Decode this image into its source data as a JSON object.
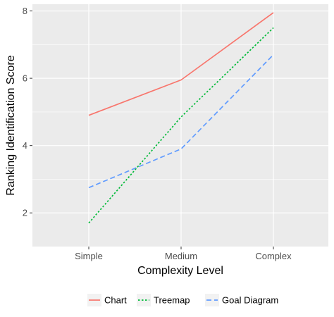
{
  "chart_data": {
    "type": "line",
    "title": "",
    "xlabel": "Complexity Level",
    "ylabel": "Ranking Identification Score",
    "categories": [
      "Simple",
      "Medium",
      "Complex"
    ],
    "ylim": [
      1.0,
      8.2
    ],
    "yticks": [
      2,
      4,
      6,
      8
    ],
    "grid": true,
    "legend_position": "bottom",
    "series": [
      {
        "name": "Chart",
        "values": [
          4.9,
          5.95,
          7.95
        ],
        "color": "#F8766D",
        "dash": "solid"
      },
      {
        "name": "Treemap",
        "values": [
          1.7,
          4.85,
          7.5
        ],
        "color": "#00BA38",
        "dash": "dotted"
      },
      {
        "name": "Goal Diagram",
        "values": [
          2.75,
          3.9,
          6.7
        ],
        "color": "#619CFF",
        "dash": "dashed"
      }
    ]
  }
}
